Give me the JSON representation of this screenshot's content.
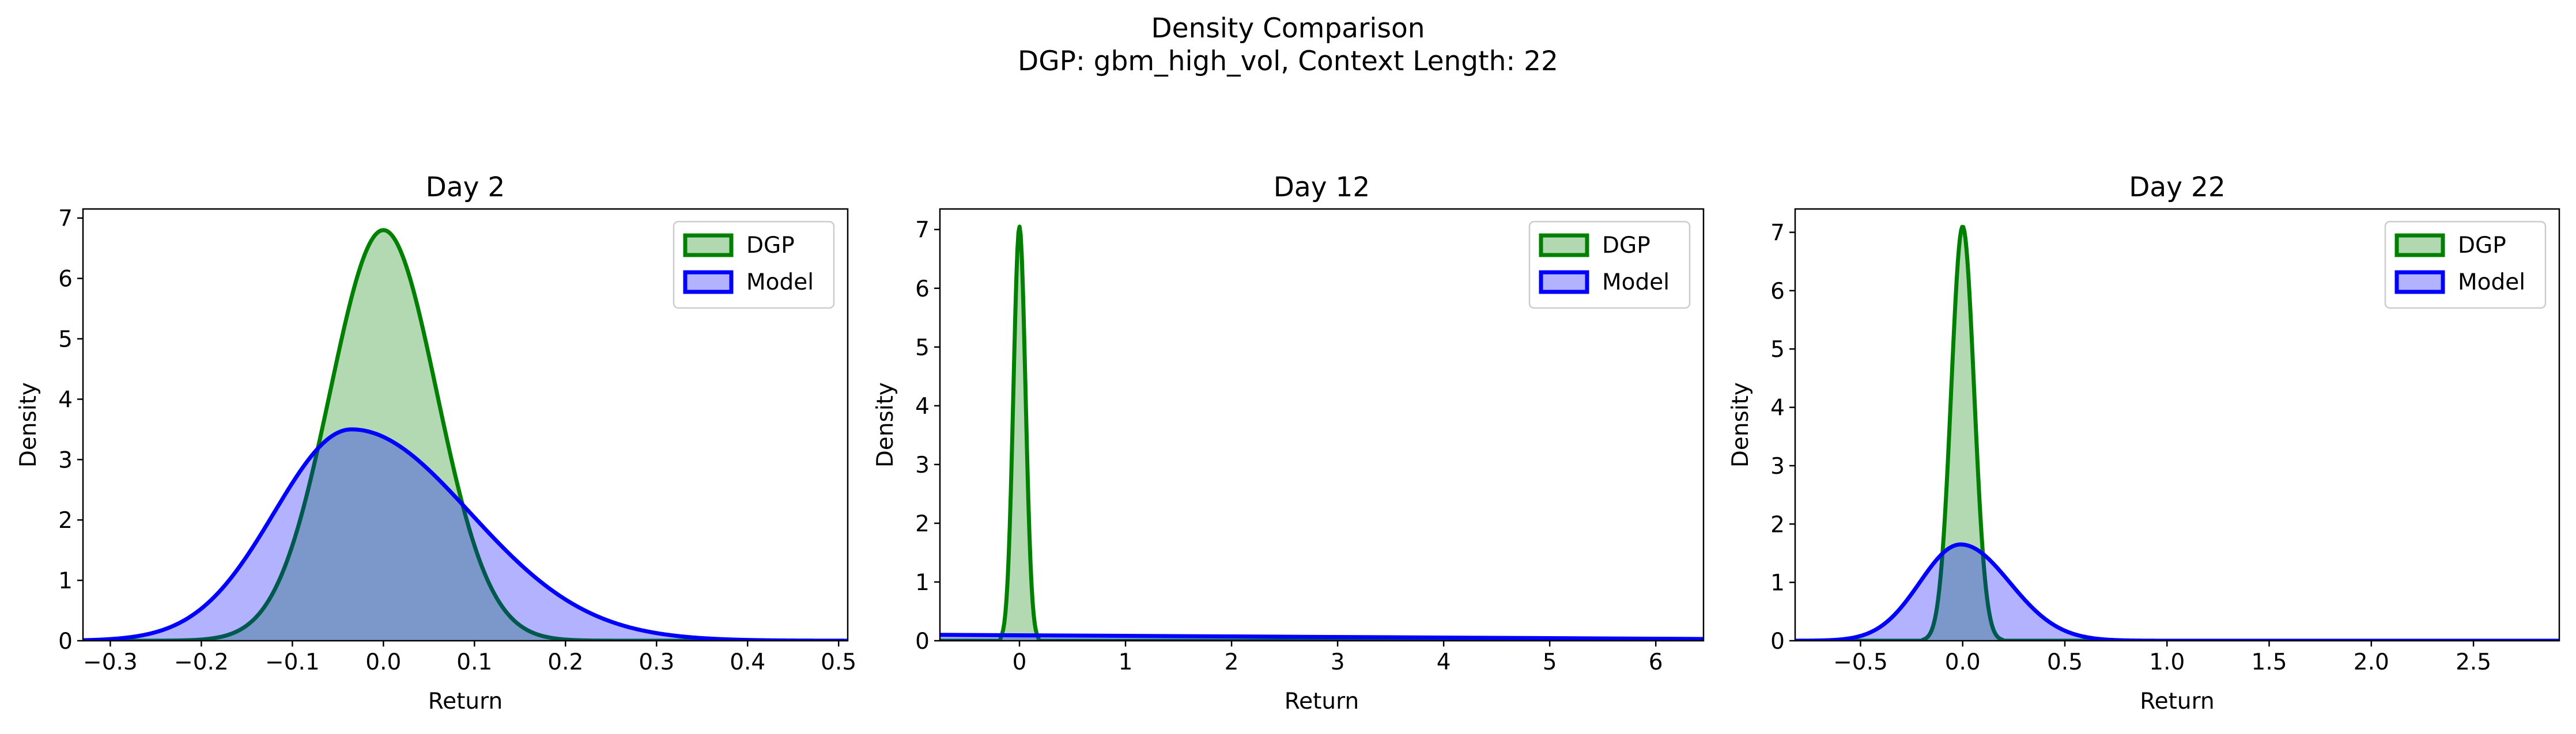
{
  "suptitle_line1": "Density Comparison",
  "suptitle_line2": "DGP: gbm_high_vol, Context Length: 22",
  "colors": {
    "dgp_line": "#008000",
    "dgp_fill": "#b2d8b2",
    "model_line": "#0000ff",
    "model_fill": "#b2b2ff"
  },
  "chart_data": [
    {
      "type": "area",
      "title": "Day 2",
      "xlabel": "Return",
      "ylabel": "Density",
      "xlim": [
        -0.33,
        0.51
      ],
      "ylim": [
        0,
        7.15
      ],
      "xticks": [
        -0.3,
        -0.2,
        -0.1,
        0.0,
        0.1,
        0.2,
        0.3,
        0.4,
        0.5
      ],
      "xtick_labels": [
        "−0.3",
        "−0.2",
        "−0.1",
        "0.0",
        "0.1",
        "0.2",
        "0.3",
        "0.4",
        "0.5"
      ],
      "yticks": [
        0,
        1,
        2,
        3,
        4,
        5,
        6,
        7
      ],
      "ytick_labels": [
        "0",
        "1",
        "2",
        "3",
        "4",
        "5",
        "6",
        "7"
      ],
      "legend": "top-right",
      "series": [
        {
          "name": "DGP",
          "dist": "normal",
          "mean": 0.0,
          "sd": 0.0585,
          "peak": 6.8,
          "support": [
            -0.25,
            0.25
          ]
        },
        {
          "name": "Model",
          "dist": "skew",
          "mode": -0.035,
          "sd_left": 0.085,
          "sd_right": 0.13,
          "peak": 3.5
        }
      ]
    },
    {
      "type": "area",
      "title": "Day 12",
      "xlabel": "Return",
      "ylabel": "Density",
      "xlim": [
        -0.75,
        6.45
      ],
      "ylim": [
        0,
        7.35
      ],
      "xticks": [
        0,
        1,
        2,
        3,
        4,
        5,
        6
      ],
      "xtick_labels": [
        "0",
        "1",
        "2",
        "3",
        "4",
        "5",
        "6"
      ],
      "yticks": [
        0,
        1,
        2,
        3,
        4,
        5,
        6,
        7
      ],
      "ytick_labels": [
        "0",
        "1",
        "2",
        "3",
        "4",
        "5",
        "6",
        "7"
      ],
      "legend": "top-right",
      "series": [
        {
          "name": "DGP",
          "dist": "normal",
          "mean": 0.0,
          "sd": 0.057,
          "peak": 7.05,
          "support": [
            -0.18,
            0.18
          ]
        },
        {
          "name": "Model",
          "dist": "linear",
          "y_start": 0.1,
          "y_end": 0.03
        }
      ]
    },
    {
      "type": "area",
      "title": "Day 22",
      "xlabel": "Return",
      "ylabel": "Density",
      "xlim": [
        -0.82,
        2.92
      ],
      "ylim": [
        0,
        7.4
      ],
      "xticks": [
        -0.5,
        0.0,
        0.5,
        1.0,
        1.5,
        2.0,
        2.5
      ],
      "xtick_labels": [
        "−0.5",
        "0.0",
        "0.5",
        "1.0",
        "1.5",
        "2.0",
        "2.5"
      ],
      "yticks": [
        0,
        1,
        2,
        3,
        4,
        5,
        6,
        7
      ],
      "ytick_labels": [
        "0",
        "1",
        "2",
        "3",
        "4",
        "5",
        "6",
        "7"
      ],
      "legend": "top-right",
      "series": [
        {
          "name": "DGP",
          "dist": "normal",
          "mean": 0.0,
          "sd": 0.056,
          "peak": 7.1,
          "support": [
            -0.2,
            0.2
          ]
        },
        {
          "name": "Model",
          "dist": "skew",
          "mode": -0.01,
          "sd_left": 0.2,
          "sd_right": 0.24,
          "peak": 1.65
        }
      ]
    }
  ]
}
